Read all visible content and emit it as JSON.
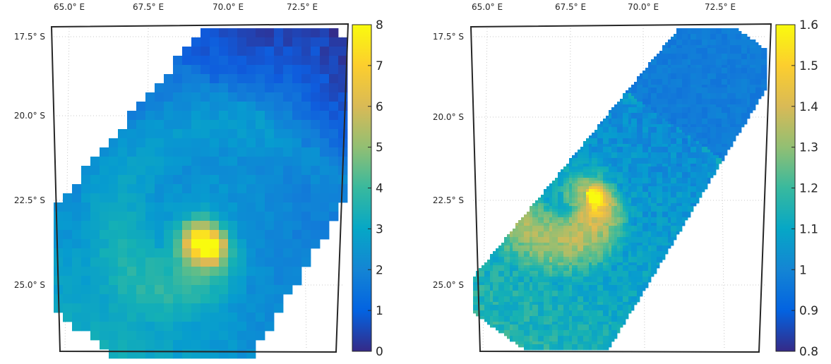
{
  "chart_data": [
    {
      "type": "heatmap",
      "title": "",
      "xlabel": "",
      "ylabel": "",
      "x_ticks": [
        "65.0° E",
        "67.5° E",
        "70.0° E",
        "72.5° E"
      ],
      "y_ticks": [
        "17.5° S",
        "20.0° S",
        "22.5° S",
        "25.0° S"
      ],
      "lon_range": [
        63.6,
        74.0
      ],
      "lat_range": [
        -26.9,
        -17.5
      ],
      "grid": true,
      "grid_style": "dotted",
      "colormap": "parula",
      "colorbar": {
        "range": [
          0,
          8
        ],
        "ticks": [
          "0",
          "1",
          "2",
          "3",
          "4",
          "5",
          "6",
          "7",
          "8"
        ]
      },
      "swath": "coarse-resolution diagonal swath (NE to SW) showing a cyclone with peak values of about 8 near 23.5° S, 69° E",
      "peak": {
        "lon": 69.0,
        "lat": -23.5,
        "value": 8
      }
    },
    {
      "type": "heatmap",
      "title": "",
      "xlabel": "",
      "ylabel": "",
      "x_ticks": [
        "65.0° E",
        "67.5° E",
        "70.0° E",
        "72.5° E"
      ],
      "y_ticks": [
        "17.5° S",
        "20.0° S",
        "22.5° S",
        "25.0° S"
      ],
      "lon_range": [
        63.6,
        74.0
      ],
      "lat_range": [
        -26.9,
        -17.5
      ],
      "grid": true,
      "grid_style": "dotted",
      "colormap": "parula",
      "colorbar": {
        "range": [
          0.8,
          1.6
        ],
        "ticks": [
          "0.8",
          "0.9",
          "1",
          "1.1",
          "1.2",
          "1.3",
          "1.4",
          "1.5",
          "1.6"
        ]
      },
      "swath": "high-resolution diagonal swath with a spiral cyclone pattern; highest values near 1.5 in the spiral arms",
      "peak": {
        "lon": 67.6,
        "lat": -22.6,
        "value": 1.5
      }
    }
  ]
}
